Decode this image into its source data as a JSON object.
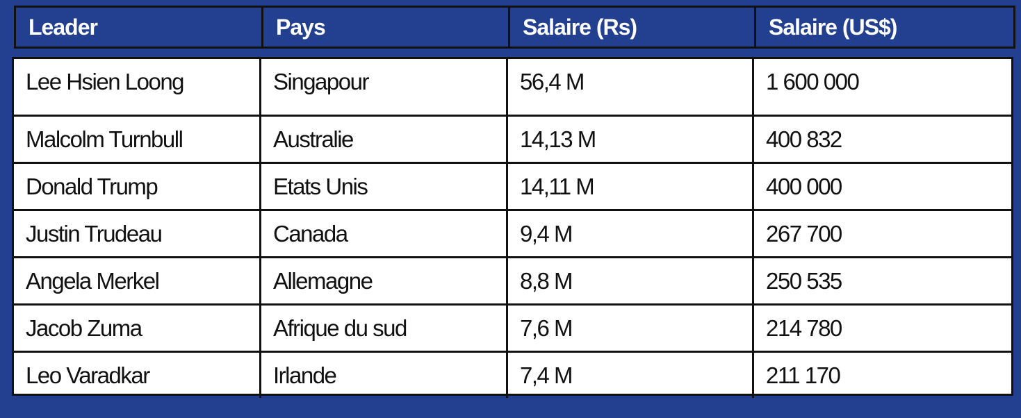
{
  "table": {
    "headers": [
      "Leader",
      "Pays",
      "Salaire (Rs)",
      "Salaire (US$)"
    ],
    "rows": [
      [
        "Lee Hsien Loong",
        "Singapour",
        "56,4 M",
        "1 600 000"
      ],
      [
        "Malcolm Turnbull",
        "Australie",
        "14,13 M",
        "400 832"
      ],
      [
        "Donald Trump",
        "Etats Unis",
        "14,11 M",
        "400 000"
      ],
      [
        "Justin Trudeau",
        "Canada",
        "9,4 M",
        "267 700"
      ],
      [
        "Angela Merkel",
        "Allemagne",
        "8,8 M",
        "250 535"
      ],
      [
        "Jacob Zuma",
        "Afrique du sud",
        "7,6 M",
        "214 780"
      ],
      [
        "Leo Varadkar",
        "Irlande",
        "7,4 M",
        "211 170"
      ]
    ]
  },
  "colors": {
    "header_background": "#233f8f",
    "header_text": "#ffffff",
    "body_background": "#ffffff",
    "grid_lines": "#111111"
  }
}
